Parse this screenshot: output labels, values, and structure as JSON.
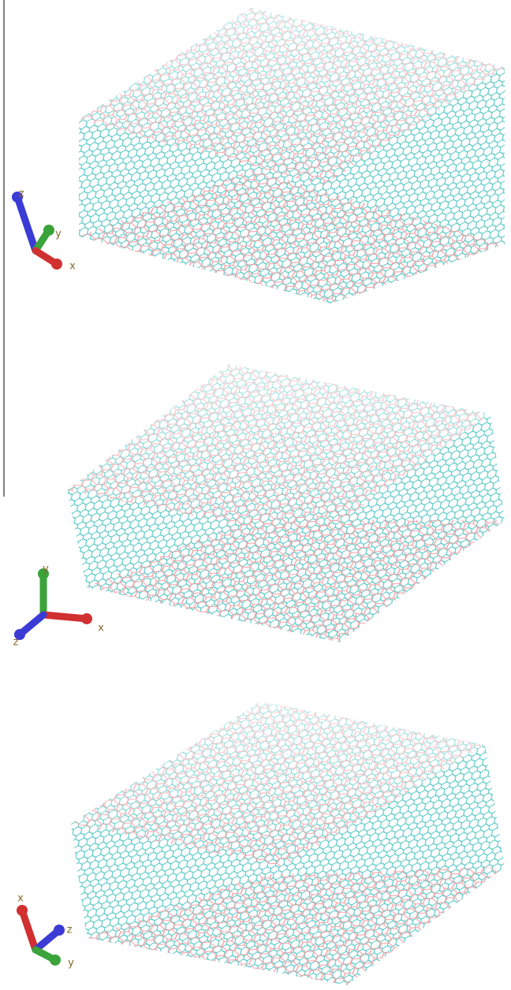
{
  "panels": [
    {
      "axes": [
        {
          "label": "z"
        },
        {
          "label": "y"
        },
        {
          "label": "x"
        }
      ]
    },
    {
      "axes": [
        {
          "label": "y"
        },
        {
          "label": "x"
        },
        {
          "label": "z"
        }
      ]
    },
    {
      "axes": [
        {
          "label": "x"
        },
        {
          "label": "z"
        },
        {
          "label": "y"
        }
      ]
    }
  ]
}
